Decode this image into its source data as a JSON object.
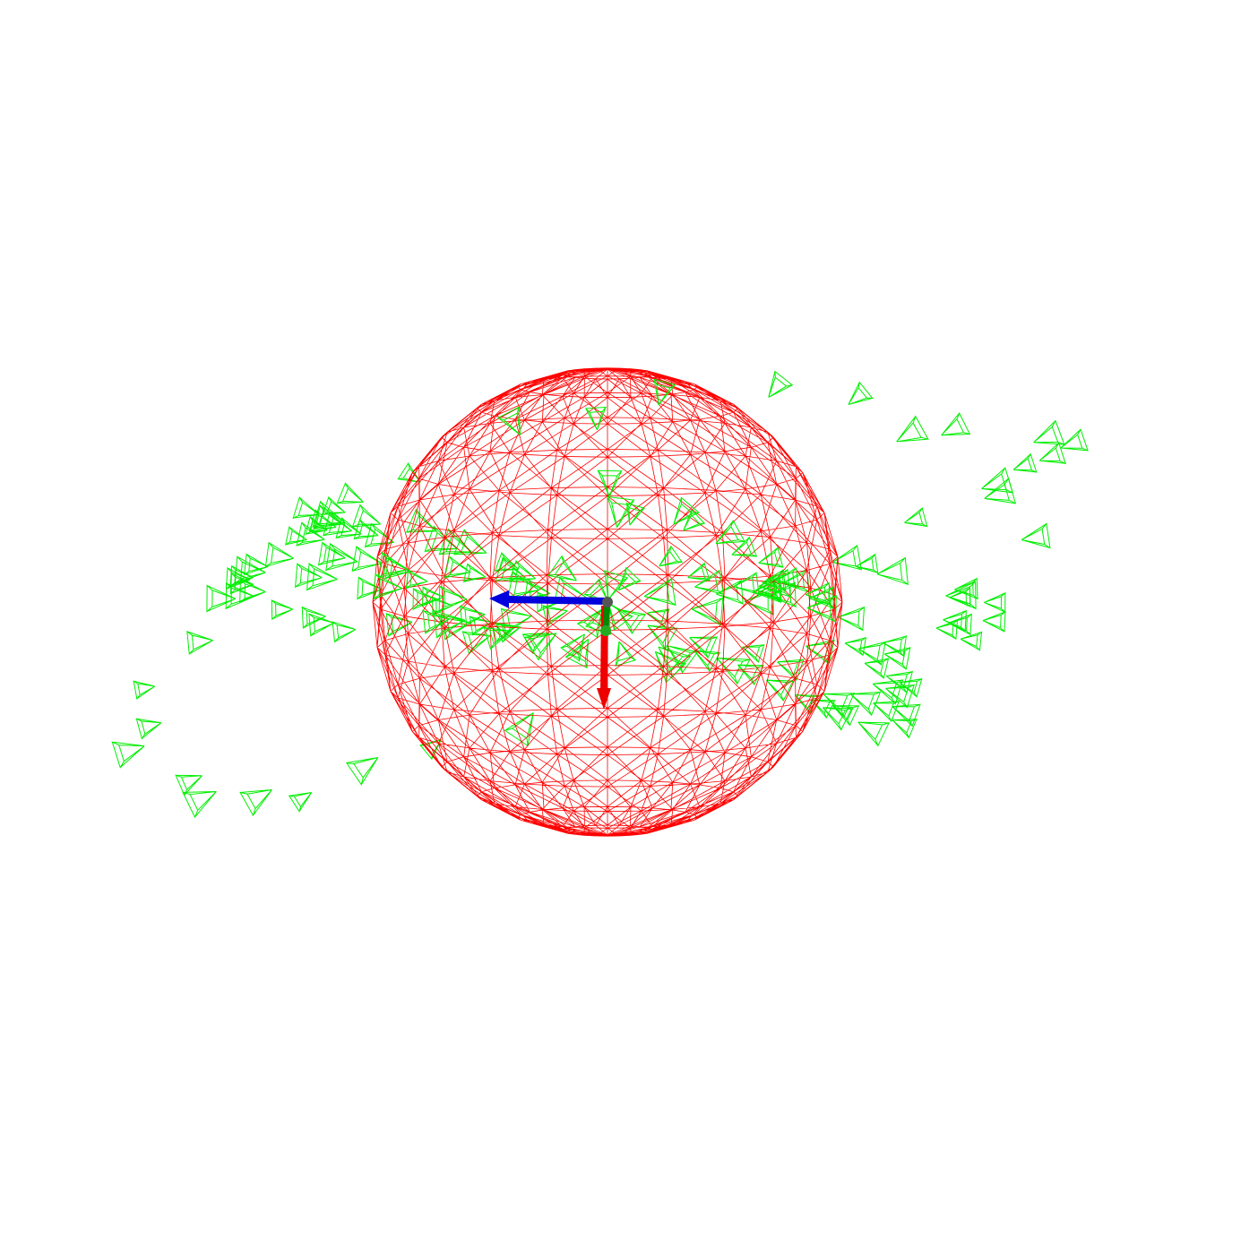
{
  "scene": {
    "background": "#ffffff",
    "sphere": {
      "color": "#ff0000",
      "latitude_rings": 16,
      "longitude_meridians": 24
    },
    "cameras": {
      "color": "#00ee00",
      "icon": "camera-frustum-icon",
      "rings": [
        {
          "count": 34,
          "phase": 0.3
        },
        {
          "count": 48,
          "phase": 0.9
        },
        {
          "count": 70,
          "phase": 1.7
        },
        {
          "count": 26,
          "phase": 2.4
        }
      ]
    },
    "axes": {
      "x_color": "#0000dd",
      "y_color": "#ee0000",
      "z_color": "#008800",
      "origin_icon": "origin-axes-icon"
    }
  }
}
